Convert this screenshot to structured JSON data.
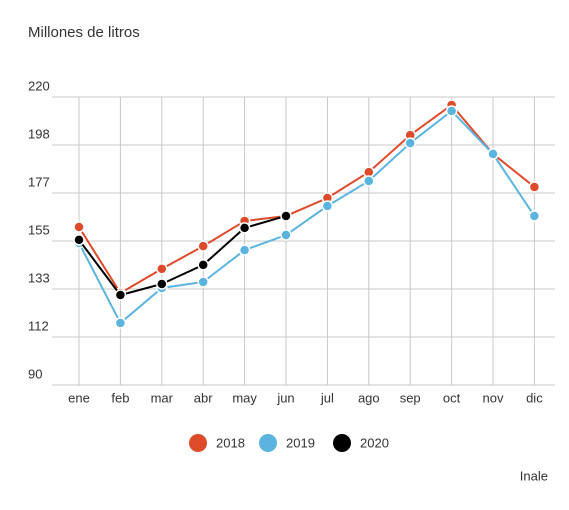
{
  "chart_data": {
    "type": "line",
    "title": "Millones de litros",
    "source": "Inale",
    "categories": [
      "ene",
      "feb",
      "mar",
      "abr",
      "may",
      "jun",
      "jul",
      "ago",
      "sep",
      "oct",
      "nov",
      "dic"
    ],
    "series": [
      {
        "name": "2018",
        "color": "#dd4b2a",
        "values": [
          161.3,
          131.5,
          142.4,
          152.7,
          164,
          166.3,
          174.4,
          186.1,
          202.8,
          216.4,
          194.3,
          179.4
        ]
      },
      {
        "name": "2019",
        "color": "#5bb4e0",
        "values": [
          154.1,
          118,
          133.8,
          136.5,
          150.9,
          157.7,
          170.8,
          182.1,
          199.2,
          213.7,
          194.3,
          166.3
        ]
      },
      {
        "name": "2020",
        "color": "#000000",
        "values": [
          155.5,
          130.6,
          135.6,
          144.2,
          160.9,
          166.3,
          null,
          null,
          null,
          null,
          null,
          null
        ]
      }
    ],
    "ylim": [
      90,
      220
    ],
    "yticks": [
      90,
      {
        "value": 111.67,
        "label": "112"
      },
      {
        "value": 133.33,
        "label": "133"
      },
      155,
      {
        "value": 176.67,
        "label": "177"
      },
      {
        "value": 198.33,
        "label": "198"
      },
      220
    ],
    "grid": true,
    "legend": "bottom"
  }
}
